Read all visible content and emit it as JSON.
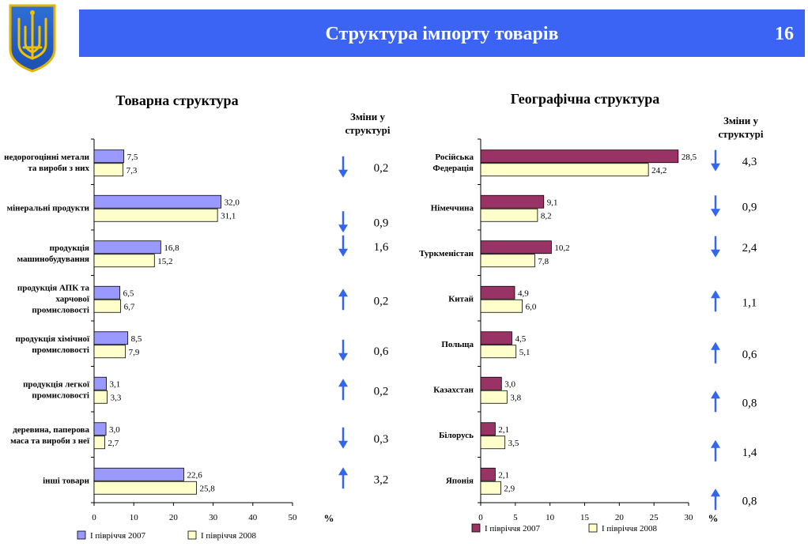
{
  "header": {
    "title": "Структура імпорту товарів",
    "page_number": "16"
  },
  "chart_data": [
    {
      "type": "bar",
      "orientation": "horizontal",
      "title": "Товарна структура",
      "changes_title": "Зміни у структурі",
      "xlabel": "%",
      "xlim": [
        0,
        50
      ],
      "xticks": [
        0,
        10,
        20,
        30,
        40,
        50
      ],
      "categories": [
        "недорогоцінні метали та вироби з них",
        "мінеральні продукти",
        "продукція машинобудування",
        "продукція АПК та харчової промисловості",
        "продукція хімічної промисловості",
        "продукція легкої промисловості",
        "деревина, паперова маса та вироби з неї",
        "інші товари"
      ],
      "series": [
        {
          "name": "І півріччя 2007",
          "color": "#9999ff",
          "values": [
            7.5,
            32.0,
            16.8,
            6.5,
            8.5,
            3.1,
            3.0,
            22.6
          ],
          "labels": [
            "7,5",
            "32,0",
            "16,8",
            "6,5",
            "8,5",
            "3,1",
            "3,0",
            "22,6"
          ]
        },
        {
          "name": "І півріччя 2008",
          "color": "#ffffcc",
          "values": [
            7.3,
            31.1,
            15.2,
            6.7,
            7.9,
            3.3,
            2.7,
            25.8
          ],
          "labels": [
            "7,3",
            "31,1",
            "15,2",
            "6,7",
            "7,9",
            "3,3",
            "2,7",
            "25,8"
          ]
        }
      ],
      "changes": [
        {
          "direction": "down",
          "value": "0,2"
        },
        {
          "direction": "down",
          "value": "0,9"
        },
        {
          "direction": "down",
          "value": "1,6"
        },
        {
          "direction": "up",
          "value": "0,2"
        },
        {
          "direction": "down",
          "value": "0,6"
        },
        {
          "direction": "up",
          "value": "0,2"
        },
        {
          "direction": "down",
          "value": "0,3"
        },
        {
          "direction": "up",
          "value": "3,2"
        }
      ],
      "legend_position": "bottom",
      "grid": false
    },
    {
      "type": "bar",
      "orientation": "horizontal",
      "title": "Географічна структура",
      "changes_title": "Зміни у структурі",
      "xlabel": "%",
      "xlim": [
        0,
        30
      ],
      "xticks": [
        0,
        5,
        10,
        15,
        20,
        25,
        30
      ],
      "categories": [
        "Російська Федерація",
        "Німеччина",
        "Туркменістан",
        "Китай",
        "Польща",
        "Казахстан",
        "Білорусь",
        "Японія"
      ],
      "series": [
        {
          "name": "І півріччя 2007",
          "color": "#993366",
          "values": [
            28.5,
            9.1,
            10.2,
            4.9,
            4.5,
            3.0,
            2.1,
            2.1
          ],
          "labels": [
            "28,5",
            "9,1",
            "10,2",
            "4,9",
            "4,5",
            "3,0",
            "2,1",
            "2,1"
          ]
        },
        {
          "name": "І півріччя 2008",
          "color": "#ffffcc",
          "values": [
            24.2,
            8.2,
            7.8,
            6.0,
            5.1,
            3.8,
            3.5,
            2.9
          ],
          "labels": [
            "24,2",
            "8,2",
            "7,8",
            "6,0",
            "5,1",
            "3,8",
            "3,5",
            "2,9"
          ]
        }
      ],
      "changes": [
        {
          "direction": "down",
          "value": "4,3"
        },
        {
          "direction": "down",
          "value": "0,9"
        },
        {
          "direction": "down",
          "value": "2,4"
        },
        {
          "direction": "up",
          "value": "1,1"
        },
        {
          "direction": "up",
          "value": "0,6"
        },
        {
          "direction": "up",
          "value": "0,8"
        },
        {
          "direction": "up",
          "value": "1,4"
        },
        {
          "direction": "up",
          "value": "0,8"
        }
      ],
      "legend_position": "bottom",
      "grid": false
    }
  ],
  "colors": {
    "header_bg": "#3b64f4",
    "arrow": "#3366ee",
    "bar_outline": "#000000"
  }
}
